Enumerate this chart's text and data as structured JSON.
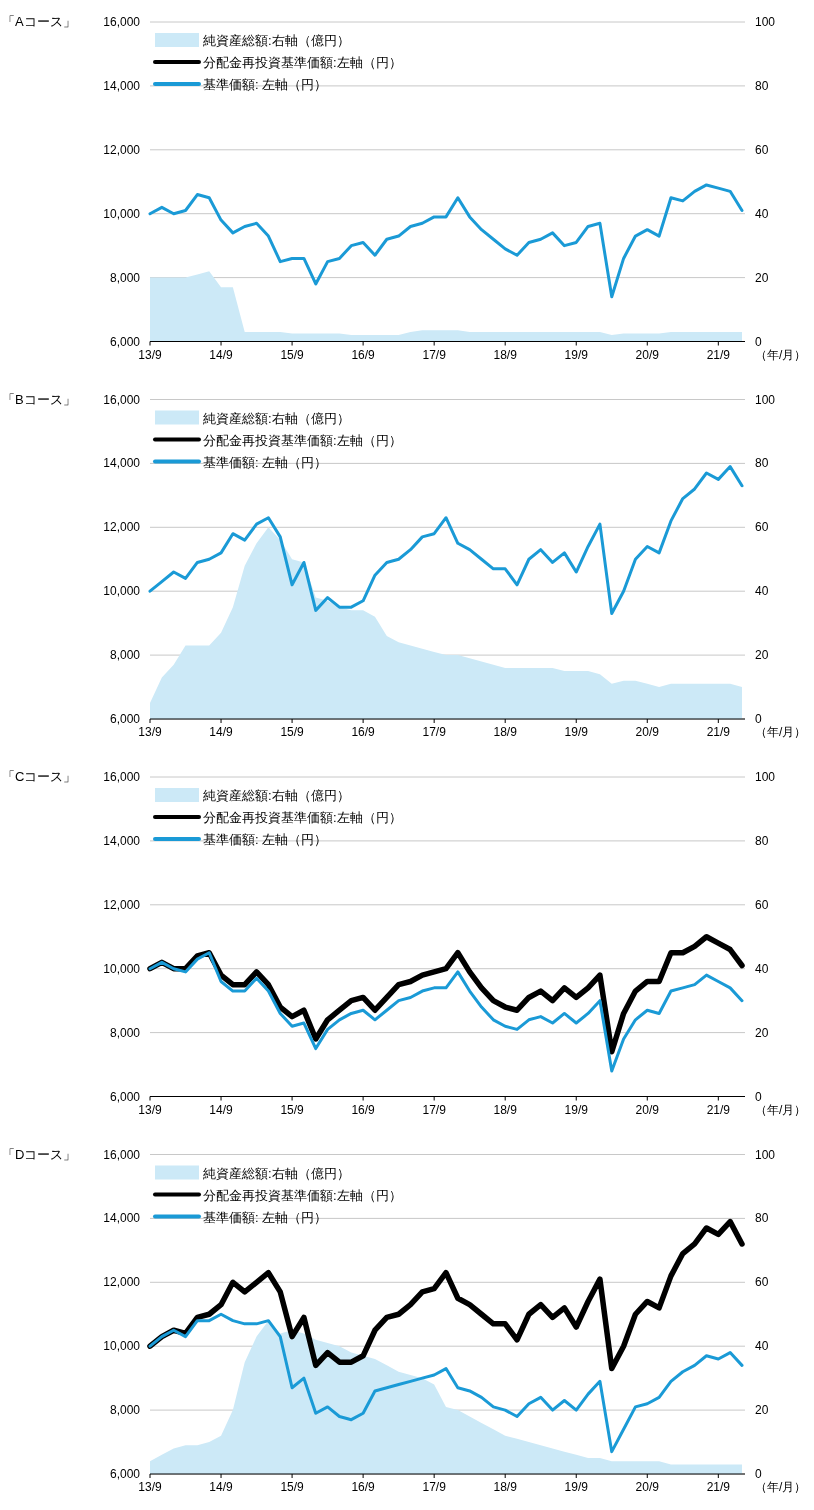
{
  "chart_data": [
    {
      "type": "line",
      "title": "「Aコース」",
      "xlabel": "（年/月）",
      "grid": "y",
      "legend": "top left",
      "categories": [
        "13/9",
        null,
        null,
        null,
        null,
        null,
        "14/9",
        null,
        null,
        null,
        null,
        null,
        "15/9",
        null,
        null,
        null,
        null,
        null,
        "16/9",
        null,
        null,
        null,
        null,
        null,
        "17/9",
        null,
        null,
        null,
        null,
        null,
        "18/9",
        null,
        null,
        null,
        null,
        null,
        "19/9",
        null,
        null,
        null,
        null,
        null,
        "20/9",
        null,
        null,
        null,
        null,
        null,
        "21/9",
        null,
        null
      ],
      "ylim": [
        6000,
        16000
      ],
      "yticks": [
        {
          "value": 6000,
          "label": "6,000"
        },
        {
          "value": 8000,
          "label": "8,000"
        },
        {
          "value": 10000,
          "label": "10,000"
        },
        {
          "value": 12000,
          "label": "12,000"
        },
        {
          "value": 14000,
          "label": "14,000"
        },
        {
          "value": 16000,
          "label": "16,000"
        }
      ],
      "y2lim": [
        0,
        100
      ],
      "y2ticks": [
        0,
        20,
        40,
        60,
        80,
        100
      ],
      "series": [
        {
          "name": "純資産総額:右軸（億円）",
          "type": "area",
          "axis": "y2",
          "color": "#cce9f7",
          "values": [
            20,
            20,
            20,
            20,
            21,
            22,
            17,
            17,
            3,
            3,
            3,
            3,
            2.5,
            2.5,
            2.5,
            2.5,
            2.5,
            2,
            2,
            2,
            2,
            2,
            3,
            3.5,
            3.5,
            3.5,
            3.5,
            3,
            3,
            3,
            3,
            3,
            3,
            3,
            3,
            3,
            3,
            3,
            3,
            2,
            2.5,
            2.5,
            2.5,
            2.5,
            3,
            3,
            3,
            3,
            3,
            3,
            3
          ]
        },
        {
          "name": "分配金再投資基準価額:左軸（円）",
          "type": "line",
          "color": "#000000",
          "values": [
            null,
            null,
            null,
            null,
            null,
            null,
            null,
            null,
            null,
            null,
            null,
            null,
            null,
            null,
            null,
            null,
            null,
            null,
            null,
            null,
            null,
            null,
            null,
            null,
            null,
            null,
            null,
            null,
            null,
            null,
            null,
            null,
            null,
            null,
            null,
            null,
            null,
            null,
            null,
            null,
            null,
            null,
            null,
            null,
            null,
            null,
            null,
            null,
            null,
            null,
            null
          ]
        },
        {
          "name": "基準価額: 左軸（円）",
          "type": "line",
          "color": "#1a9ad6",
          "values": [
            10000,
            10200,
            10000,
            10100,
            10600,
            10500,
            9800,
            9400,
            9600,
            9700,
            9300,
            8500,
            8600,
            8600,
            7800,
            8500,
            8600,
            9000,
            9100,
            8700,
            9200,
            9300,
            9600,
            9700,
            9900,
            9900,
            10500,
            9900,
            9500,
            9200,
            8900,
            8700,
            9100,
            9200,
            9400,
            9000,
            9100,
            9600,
            9700,
            7400,
            8600,
            9300,
            9500,
            9300,
            10500,
            10400,
            10700,
            10900,
            10800,
            10700,
            10100
          ]
        }
      ]
    },
    {
      "type": "line",
      "title": "「Bコース」",
      "xlabel": "（年/月）",
      "grid": "y",
      "legend": "top left",
      "categories": [
        "13/9",
        null,
        null,
        null,
        null,
        null,
        "14/9",
        null,
        null,
        null,
        null,
        null,
        "15/9",
        null,
        null,
        null,
        null,
        null,
        "16/9",
        null,
        null,
        null,
        null,
        null,
        "17/9",
        null,
        null,
        null,
        null,
        null,
        "18/9",
        null,
        null,
        null,
        null,
        null,
        "19/9",
        null,
        null,
        null,
        null,
        null,
        "20/9",
        null,
        null,
        null,
        null,
        null,
        "21/9",
        null,
        null
      ],
      "ylim": [
        6000,
        16000
      ],
      "yticks": [
        {
          "value": 6000,
          "label": "6,000"
        },
        {
          "value": 8000,
          "label": "8,000"
        },
        {
          "value": 10000,
          "label": "10,000"
        },
        {
          "value": 12000,
          "label": "12,000"
        },
        {
          "value": 14000,
          "label": "14,000"
        },
        {
          "value": 16000,
          "label": "16,000"
        }
      ],
      "y2lim": [
        0,
        100
      ],
      "y2ticks": [
        0,
        20,
        40,
        60,
        80,
        100
      ],
      "series": [
        {
          "name": "純資産総額:右軸（億円）",
          "type": "area",
          "axis": "y2",
          "color": "#cce9f7",
          "values": [
            5,
            13,
            17,
            23,
            23,
            23,
            27,
            35,
            48,
            55,
            60,
            56,
            50,
            49,
            38,
            37,
            35,
            34,
            34,
            32,
            26,
            24,
            23,
            22,
            21,
            20,
            20,
            19,
            18,
            17,
            16,
            16,
            16,
            16,
            16,
            15,
            15,
            15,
            14,
            11,
            12,
            12,
            11,
            10,
            11,
            11,
            11,
            11,
            11,
            11,
            10
          ]
        },
        {
          "name": "分配金再投資基準価額:左軸（円）",
          "type": "line",
          "color": "#000000",
          "values": [
            null,
            null,
            null,
            null,
            null,
            null,
            null,
            null,
            null,
            null,
            null,
            null,
            null,
            null,
            null,
            null,
            null,
            null,
            null,
            null,
            null,
            null,
            null,
            null,
            null,
            null,
            null,
            null,
            null,
            null,
            null,
            null,
            null,
            null,
            null,
            null,
            null,
            null,
            null,
            null,
            null,
            null,
            null,
            null,
            null,
            null,
            null,
            null,
            null,
            null,
            null
          ]
        },
        {
          "name": "基準価額: 左軸（円）",
          "type": "line",
          "color": "#1a9ad6",
          "values": [
            10000,
            10300,
            10600,
            10400,
            10900,
            11000,
            11200,
            11800,
            11600,
            12100,
            12300,
            11700,
            10200,
            10900,
            9400,
            9800,
            9500,
            9500,
            9700,
            10500,
            10900,
            11000,
            11300,
            11700,
            11800,
            12300,
            11500,
            11300,
            11000,
            10700,
            10700,
            10200,
            11000,
            11300,
            10900,
            11200,
            10600,
            11400,
            12100,
            9300,
            10000,
            11000,
            11400,
            11200,
            12200,
            12900,
            13200,
            13700,
            13500,
            13900,
            13300
          ]
        }
      ]
    },
    {
      "type": "line",
      "title": "「Cコース」",
      "xlabel": "（年/月）",
      "grid": "y",
      "legend": "top left",
      "categories": [
        "13/9",
        null,
        null,
        null,
        null,
        null,
        "14/9",
        null,
        null,
        null,
        null,
        null,
        "15/9",
        null,
        null,
        null,
        null,
        null,
        "16/9",
        null,
        null,
        null,
        null,
        null,
        "17/9",
        null,
        null,
        null,
        null,
        null,
        "18/9",
        null,
        null,
        null,
        null,
        null,
        "19/9",
        null,
        null,
        null,
        null,
        null,
        "20/9",
        null,
        null,
        null,
        null,
        null,
        "21/9",
        null,
        null
      ],
      "ylim": [
        6000,
        16000
      ],
      "yticks": [
        {
          "value": 6000,
          "label": "6,000"
        },
        {
          "value": 8000,
          "label": "8,000"
        },
        {
          "value": 10000,
          "label": "10,000"
        },
        {
          "value": 12000,
          "label": "12,000"
        },
        {
          "value": 14000,
          "label": "14,000"
        },
        {
          "value": 16000,
          "label": "16,000"
        }
      ],
      "y2lim": [
        0,
        100
      ],
      "y2ticks": [
        0,
        20,
        40,
        60,
        80,
        100
      ],
      "series": [
        {
          "name": "純資産総額:右軸（億円）",
          "type": "area",
          "axis": "y2",
          "color": "#cce9f7",
          "values": [
            null,
            null,
            null,
            null,
            null,
            null,
            null,
            null,
            null,
            null,
            null,
            null,
            null,
            null,
            null,
            null,
            null,
            null,
            null,
            null,
            null,
            null,
            null,
            null,
            null,
            null,
            null,
            null,
            null,
            null,
            null,
            null,
            null,
            null,
            null,
            null,
            null,
            null,
            null,
            null,
            null,
            null,
            null,
            null,
            null,
            null,
            null,
            null,
            null,
            null,
            null
          ]
        },
        {
          "name": "分配金再投資基準価額:左軸（円）",
          "type": "line",
          "color": "#000000",
          "values": [
            10000,
            10200,
            10000,
            10000,
            10400,
            10500,
            9800,
            9500,
            9500,
            9900,
            9500,
            8800,
            8500,
            8700,
            7800,
            8400,
            8700,
            9000,
            9100,
            8700,
            9100,
            9500,
            9600,
            9800,
            9900,
            10000,
            10500,
            9900,
            9400,
            9000,
            8800,
            8700,
            9100,
            9300,
            9000,
            9400,
            9100,
            9400,
            9800,
            7400,
            8600,
            9300,
            9600,
            9600,
            10500,
            10500,
            10700,
            11000,
            10800,
            10600,
            10100
          ]
        },
        {
          "name": "基準価額: 左軸（円）",
          "type": "line",
          "color": "#1a9ad6",
          "values": [
            10000,
            10200,
            10000,
            9900,
            10300,
            10500,
            9600,
            9300,
            9300,
            9700,
            9300,
            8600,
            8200,
            8300,
            7500,
            8100,
            8400,
            8600,
            8700,
            8400,
            8700,
            9000,
            9100,
            9300,
            9400,
            9400,
            9900,
            9300,
            8800,
            8400,
            8200,
            8100,
            8400,
            8500,
            8300,
            8600,
            8300,
            8600,
            9000,
            6800,
            7800,
            8400,
            8700,
            8600,
            9300,
            9400,
            9500,
            9800,
            9600,
            9400,
            9000
          ]
        }
      ]
    },
    {
      "type": "line",
      "title": "「Dコース」",
      "xlabel": "（年/月）",
      "grid": "y",
      "legend": "top left",
      "categories": [
        "13/9",
        null,
        null,
        null,
        null,
        null,
        "14/9",
        null,
        null,
        null,
        null,
        null,
        "15/9",
        null,
        null,
        null,
        null,
        null,
        "16/9",
        null,
        null,
        null,
        null,
        null,
        "17/9",
        null,
        null,
        null,
        null,
        null,
        "18/9",
        null,
        null,
        null,
        null,
        null,
        "19/9",
        null,
        null,
        null,
        null,
        null,
        "20/9",
        null,
        null,
        null,
        null,
        null,
        "21/9",
        null,
        null
      ],
      "ylim": [
        6000,
        16000
      ],
      "yticks": [
        {
          "value": 6000,
          "label": "6,000"
        },
        {
          "value": 8000,
          "label": "8,000"
        },
        {
          "value": 10000,
          "label": "10,000"
        },
        {
          "value": 12000,
          "label": "12,000"
        },
        {
          "value": 14000,
          "label": "14,000"
        },
        {
          "value": 16000,
          "label": "16,000"
        }
      ],
      "y2lim": [
        0,
        100
      ],
      "y2ticks": [
        0,
        20,
        40,
        60,
        80,
        100
      ],
      "series": [
        {
          "name": "純資産総額:右軸（億円）",
          "type": "area",
          "axis": "y2",
          "color": "#cce9f7",
          "values": [
            4,
            6,
            8,
            9,
            9,
            10,
            12,
            20,
            35,
            43,
            48,
            44,
            45,
            44,
            42,
            41,
            40,
            38,
            37,
            36,
            34,
            32,
            31,
            30,
            28,
            21,
            20,
            18,
            16,
            14,
            12,
            11,
            10,
            9,
            8,
            7,
            6,
            5,
            5,
            4,
            4,
            4,
            4,
            4,
            3,
            3,
            3,
            3,
            3,
            3,
            3
          ]
        },
        {
          "name": "分配金再投資基準価額:左軸（円）",
          "type": "line",
          "color": "#000000",
          "values": [
            10000,
            10300,
            10500,
            10400,
            10900,
            11000,
            11300,
            12000,
            11700,
            12000,
            12300,
            11700,
            10300,
            10900,
            9400,
            9800,
            9500,
            9500,
            9700,
            10500,
            10900,
            11000,
            11300,
            11700,
            11800,
            12300,
            11500,
            11300,
            11000,
            10700,
            10700,
            10200,
            11000,
            11300,
            10900,
            11200,
            10600,
            11400,
            12100,
            9300,
            10000,
            11000,
            11400,
            11200,
            12200,
            12900,
            13200,
            13700,
            13500,
            13900,
            13200
          ]
        },
        {
          "name": "基準価額: 左軸（円）",
          "type": "line",
          "color": "#1a9ad6",
          "values": [
            10000,
            10300,
            10500,
            10300,
            10800,
            10800,
            11000,
            10800,
            10700,
            10700,
            10800,
            10300,
            8700,
            9000,
            7900,
            8100,
            7800,
            7700,
            7900,
            8600,
            8700,
            8800,
            8900,
            9000,
            9100,
            9300,
            8700,
            8600,
            8400,
            8100,
            8000,
            7800,
            8200,
            8400,
            8000,
            8300,
            8000,
            8500,
            8900,
            6700,
            7400,
            8100,
            8200,
            8400,
            8900,
            9200,
            9400,
            9700,
            9600,
            9800,
            9400
          ]
        }
      ]
    }
  ]
}
